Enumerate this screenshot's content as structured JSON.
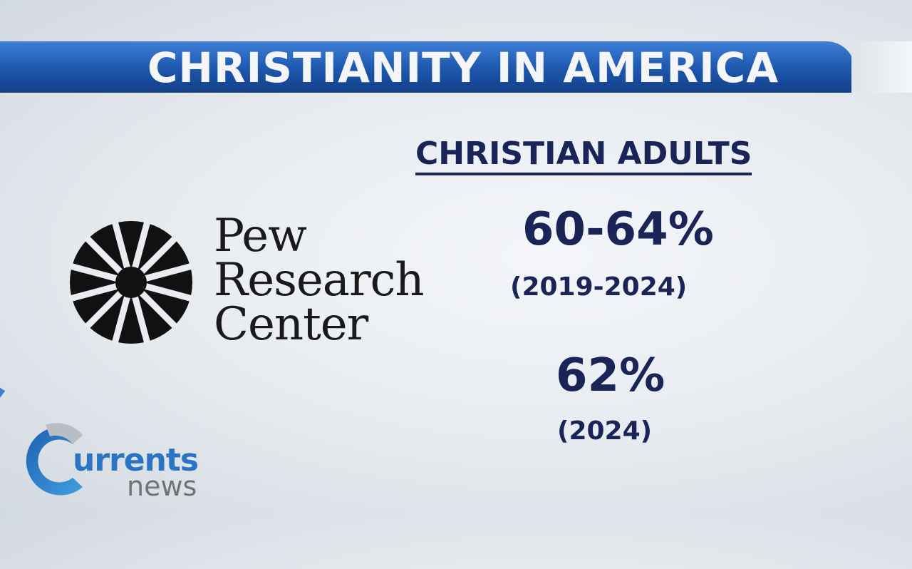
{
  "header": {
    "title": "CHRISTIANITY IN AMERICA"
  },
  "main": {
    "subtitle": "CHRISTIAN ADULTS",
    "stats": [
      {
        "value": "60-64%",
        "period": "(2019-2024)"
      },
      {
        "value": "62%",
        "period": "(2024)"
      }
    ]
  },
  "source_logo": {
    "lines": [
      "Pew",
      "Research",
      "Center"
    ]
  },
  "brand": {
    "word": "urrents",
    "sub": "news",
    "colors": {
      "blue": "#2b74c4",
      "gray": "#707478"
    }
  },
  "colors": {
    "banner": "#1c56ad",
    "text": "#1a2456"
  }
}
